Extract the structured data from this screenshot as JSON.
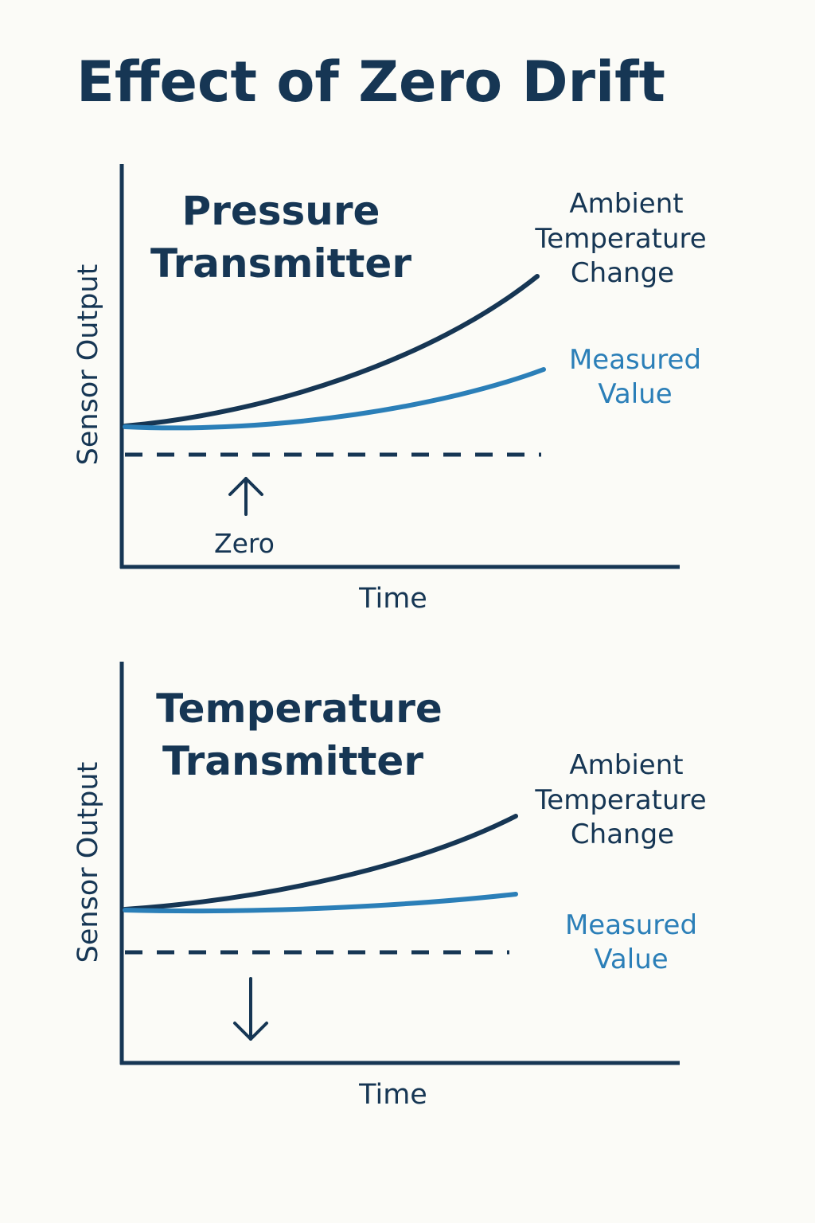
{
  "title": "Effect of Zero Drift",
  "colors": {
    "dark": "#163654",
    "accent": "#2b7fb8",
    "background": "#fbfbf7"
  },
  "panels": [
    {
      "title_line1": "Pressure",
      "title_line2": "Transmitter",
      "y_axis_label": "Sensor Output",
      "x_axis_label": "Time",
      "ambient_label": [
        "Ambient",
        "Temperature",
        "Change"
      ],
      "measured_label": [
        "Measured",
        "Value"
      ],
      "zero_label": "Zero",
      "arrow_direction": "up",
      "arrow_icon": "arrow-up-icon"
    },
    {
      "title_line1": "Temperature",
      "title_line2": "Transmitter",
      "y_axis_label": "Sensor Output",
      "x_axis_label": "Time",
      "ambient_label": [
        "Ambient",
        "Temperature",
        "Change"
      ],
      "measured_label": [
        "Measured",
        "Value"
      ],
      "zero_label": "",
      "arrow_direction": "down",
      "arrow_icon": "arrow-down-icon"
    }
  ]
}
